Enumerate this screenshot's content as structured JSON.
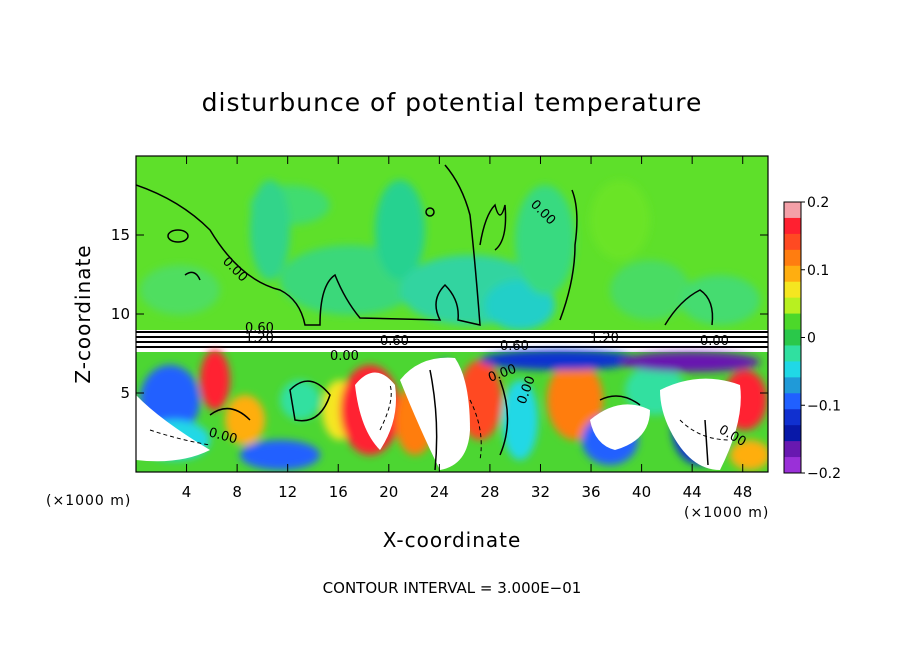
{
  "chart_data": {
    "type": "heatmap",
    "title": "disturbunce of potential temperature",
    "xlabel": "X-coordinate",
    "ylabel": "Z-coordinate",
    "x_unit_left": "(×1000 m)",
    "x_unit_right": "(×1000 m)",
    "xlim": [
      0,
      50
    ],
    "ylim": [
      0,
      20
    ],
    "x_ticks": [
      4,
      8,
      12,
      16,
      20,
      24,
      28,
      32,
      36,
      40,
      44,
      48
    ],
    "y_ticks": [
      5,
      10,
      15
    ],
    "colorbar": {
      "min": -0.2,
      "max": 0.2,
      "tick_values": [
        0.2,
        0.1,
        0,
        -0.1,
        -0.2
      ],
      "tick_labels": [
        "0.2",
        "0.1",
        "0",
        "−0.1",
        "−0.2"
      ],
      "colors": [
        "#f4a0a8",
        "#ff2030",
        "#ff4a22",
        "#ff7d10",
        "#ffae10",
        "#f5e620",
        "#b8f020",
        "#4cd82a",
        "#2ac84a",
        "#30e0a0",
        "#20d8e6",
        "#209ad8",
        "#2060ff",
        "#1030d0",
        "#0818a8",
        "#6818b0",
        "#9a30d8"
      ]
    },
    "contour_labels": [
      "0.00",
      "0.00",
      "0.00",
      "1.20",
      "0.60",
      "0.60",
      "1.20",
      "0.00",
      "0.00",
      "0.60",
      "0.00",
      "0.00",
      "0.00"
    ],
    "footer": "CONTOUR INTERVAL = 3.000E−01"
  }
}
